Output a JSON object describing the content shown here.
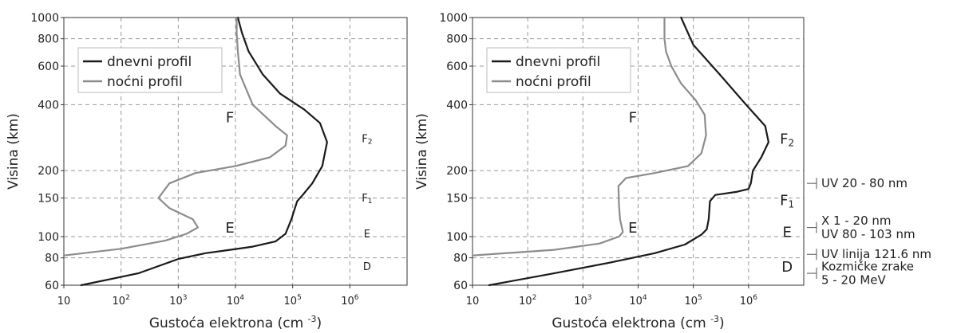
{
  "chart_data": [
    {
      "type": "line",
      "xlabel": "Gustoća elektrona (cm",
      "xlabel_sup": "-3",
      "xlabel_close": ")",
      "ylabel": "Visina (km)",
      "x_scale": "log",
      "y_scale": "log",
      "xlim": [
        10,
        10000000
      ],
      "ylim": [
        60,
        1000
      ],
      "grid": true,
      "legend_position": "top-left",
      "x_ticks": [
        {
          "base": "10",
          "exp": ""
        },
        {
          "base": "10",
          "exp": "2"
        },
        {
          "base": "10",
          "exp": "3"
        },
        {
          "base": "10",
          "exp": "4"
        },
        {
          "base": "10",
          "exp": "5"
        },
        {
          "base": "10",
          "exp": "6"
        }
      ],
      "y_ticks": [
        "60",
        "80",
        "100",
        "150",
        "200",
        "400",
        "600",
        "800",
        "1000"
      ],
      "series": [
        {
          "name": "dnevni profil",
          "color": "#1a1a1a",
          "points": [
            [
              20,
              60
            ],
            [
              200,
              68
            ],
            [
              1000,
              79
            ],
            [
              3000,
              84
            ],
            [
              8000,
              87
            ],
            [
              20000,
              90
            ],
            [
              50000,
              95
            ],
            [
              75000,
              103
            ],
            [
              95000,
              120
            ],
            [
              120000,
              145
            ],
            [
              150000,
              155
            ],
            [
              220000,
              175
            ],
            [
              330000,
              210
            ],
            [
              400000,
              270
            ],
            [
              300000,
              330
            ],
            [
              160000,
              380
            ],
            [
              60000,
              450
            ],
            [
              30000,
              550
            ],
            [
              17000,
              700
            ],
            [
              13000,
              850
            ],
            [
              11000,
              1000
            ]
          ]
        },
        {
          "name": "noćni profil",
          "color": "#8c8c8c",
          "points": [
            [
              10,
              82
            ],
            [
              100,
              88
            ],
            [
              600,
              96
            ],
            [
              1400,
              103
            ],
            [
              2200,
              110
            ],
            [
              1800,
              120
            ],
            [
              700,
              135
            ],
            [
              450,
              150
            ],
            [
              700,
              175
            ],
            [
              2000,
              195
            ],
            [
              10000,
              210
            ],
            [
              40000,
              230
            ],
            [
              75000,
              260
            ],
            [
              80000,
              290
            ],
            [
              50000,
              320
            ],
            [
              20000,
              400
            ],
            [
              12000,
              550
            ],
            [
              11000,
              700
            ],
            [
              10500,
              850
            ],
            [
              10500,
              1000
            ]
          ]
        }
      ],
      "region_labels": [
        {
          "text": "F",
          "x": 8000,
          "y": 350
        },
        {
          "text": "E",
          "x": 8000,
          "y": 110
        },
        {
          "text": "F",
          "sub": "2",
          "x": 2000000,
          "y": 280,
          "small": true
        },
        {
          "text": "F",
          "sub": "1",
          "x": 2000000,
          "y": 150,
          "small": true
        },
        {
          "text": "E",
          "x": 2000000,
          "y": 103,
          "small": true
        },
        {
          "text": "D",
          "x": 2000000,
          "y": 73,
          "small": true
        }
      ],
      "side_annotations": []
    },
    {
      "type": "line",
      "xlabel": "Gustoća elektrona (cm",
      "xlabel_sup": "-3",
      "xlabel_close": ")",
      "ylabel": "Visina (km)",
      "x_scale": "log",
      "y_scale": "log",
      "xlim": [
        10,
        10000000
      ],
      "ylim": [
        60,
        1000
      ],
      "grid": true,
      "legend_position": "top-left",
      "x_ticks": [
        {
          "base": "10",
          "exp": ""
        },
        {
          "base": "10",
          "exp": "2"
        },
        {
          "base": "10",
          "exp": "3"
        },
        {
          "base": "10",
          "exp": "4"
        },
        {
          "base": "10",
          "exp": "5"
        },
        {
          "base": "10",
          "exp": "6"
        }
      ],
      "y_ticks": [
        "60",
        "80",
        "100",
        "150",
        "200",
        "400",
        "600",
        "800",
        "1000"
      ],
      "series": [
        {
          "name": "dnevni profil",
          "color": "#1a1a1a",
          "points": [
            [
              20,
              60
            ],
            [
              300,
              68
            ],
            [
              3000,
              76
            ],
            [
              20000,
              84
            ],
            [
              70000,
              92
            ],
            [
              140000,
              102
            ],
            [
              175000,
              108
            ],
            [
              190000,
              120
            ],
            [
              200000,
              145
            ],
            [
              250000,
              155
            ],
            [
              600000,
              160
            ],
            [
              1000000,
              165
            ],
            [
              1100000,
              175
            ],
            [
              1200000,
              200
            ],
            [
              1700000,
              230
            ],
            [
              2300000,
              270
            ],
            [
              2000000,
              320
            ],
            [
              900000,
              400
            ],
            [
              300000,
              550
            ],
            [
              100000,
              750
            ],
            [
              60000,
              1000
            ]
          ]
        },
        {
          "name": "noćni profil",
          "color": "#8c8c8c",
          "points": [
            [
              10,
              82
            ],
            [
              300,
              87
            ],
            [
              2000,
              93
            ],
            [
              4500,
              100
            ],
            [
              5300,
              105
            ],
            [
              4700,
              120
            ],
            [
              4500,
              140
            ],
            [
              4400,
              170
            ],
            [
              6000,
              185
            ],
            [
              20000,
              195
            ],
            [
              80000,
              210
            ],
            [
              140000,
              240
            ],
            [
              170000,
              290
            ],
            [
              160000,
              360
            ],
            [
              110000,
              420
            ],
            [
              60000,
              500
            ],
            [
              40000,
              600
            ],
            [
              32000,
              700
            ],
            [
              30000,
              800
            ],
            [
              30000,
              1000
            ]
          ]
        }
      ],
      "region_labels": [
        {
          "text": "F",
          "x": 8000,
          "y": 350
        },
        {
          "text": "E",
          "x": 8000,
          "y": 110
        },
        {
          "text": "F",
          "sub": "2",
          "x": 5000000,
          "y": 280
        },
        {
          "text": "F",
          "sub": "1",
          "x": 5000000,
          "y": 147
        },
        {
          "text": "E",
          "x": 5000000,
          "y": 105
        },
        {
          "text": "D",
          "x": 5000000,
          "y": 73
        }
      ],
      "side_annotations": [
        {
          "lines": [
            "UV 20 - 80 nm"
          ],
          "y": 175
        },
        {
          "lines": [
            "X 1 - 20 nm",
            "UV 80 - 103 nm"
          ],
          "y": 110
        },
        {
          "lines": [
            "UV linija 121.6 nm"
          ],
          "y": 83
        },
        {
          "lines": [
            "Kozmičke zrake",
            " 5 - 20 MeV"
          ],
          "y": 68
        }
      ]
    }
  ]
}
